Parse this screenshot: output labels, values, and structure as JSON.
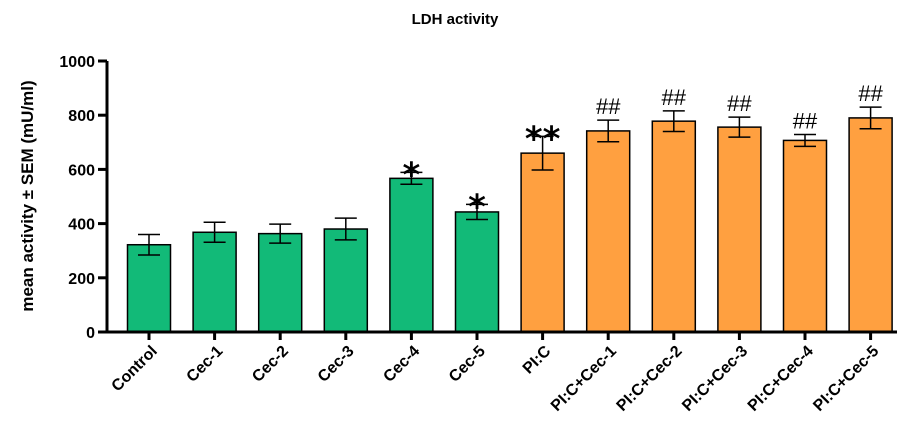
{
  "chart_data": {
    "type": "bar",
    "title": "LDH activity",
    "xlabel": "",
    "ylabel": "mean activity ± SEM (mU/ml)",
    "ylim": [
      0,
      1000
    ],
    "yticks": [
      "0",
      "200",
      "400",
      "600",
      "800",
      "1000"
    ],
    "categories": [
      "Control",
      "Cec-1",
      "Cec-2",
      "Cec-3",
      "Cec-4",
      "Cec-5",
      "PI:C",
      "PI:C+Cec-1",
      "PI:C+Cec-2",
      "PI:C+Cec-3",
      "PI:C+Cec-4",
      "PI:C+Cec-5"
    ],
    "values": [
      322,
      368,
      363,
      380,
      567,
      443,
      660,
      742,
      778,
      756,
      707,
      790
    ],
    "errors": [
      38,
      37,
      35,
      40,
      22,
      28,
      62,
      40,
      38,
      37,
      22,
      40
    ],
    "bar_colors": [
      "#12ba78",
      "#12ba78",
      "#12ba78",
      "#12ba78",
      "#12ba78",
      "#12ba78",
      "#ffa040",
      "#ffa040",
      "#ffa040",
      "#ffa040",
      "#ffa040",
      "#ffa040"
    ],
    "annotations": [
      "",
      "",
      "",
      "",
      "*",
      "*",
      "**",
      "##",
      "##",
      "##",
      "##",
      "##"
    ],
    "grid": false,
    "legend": "none"
  }
}
